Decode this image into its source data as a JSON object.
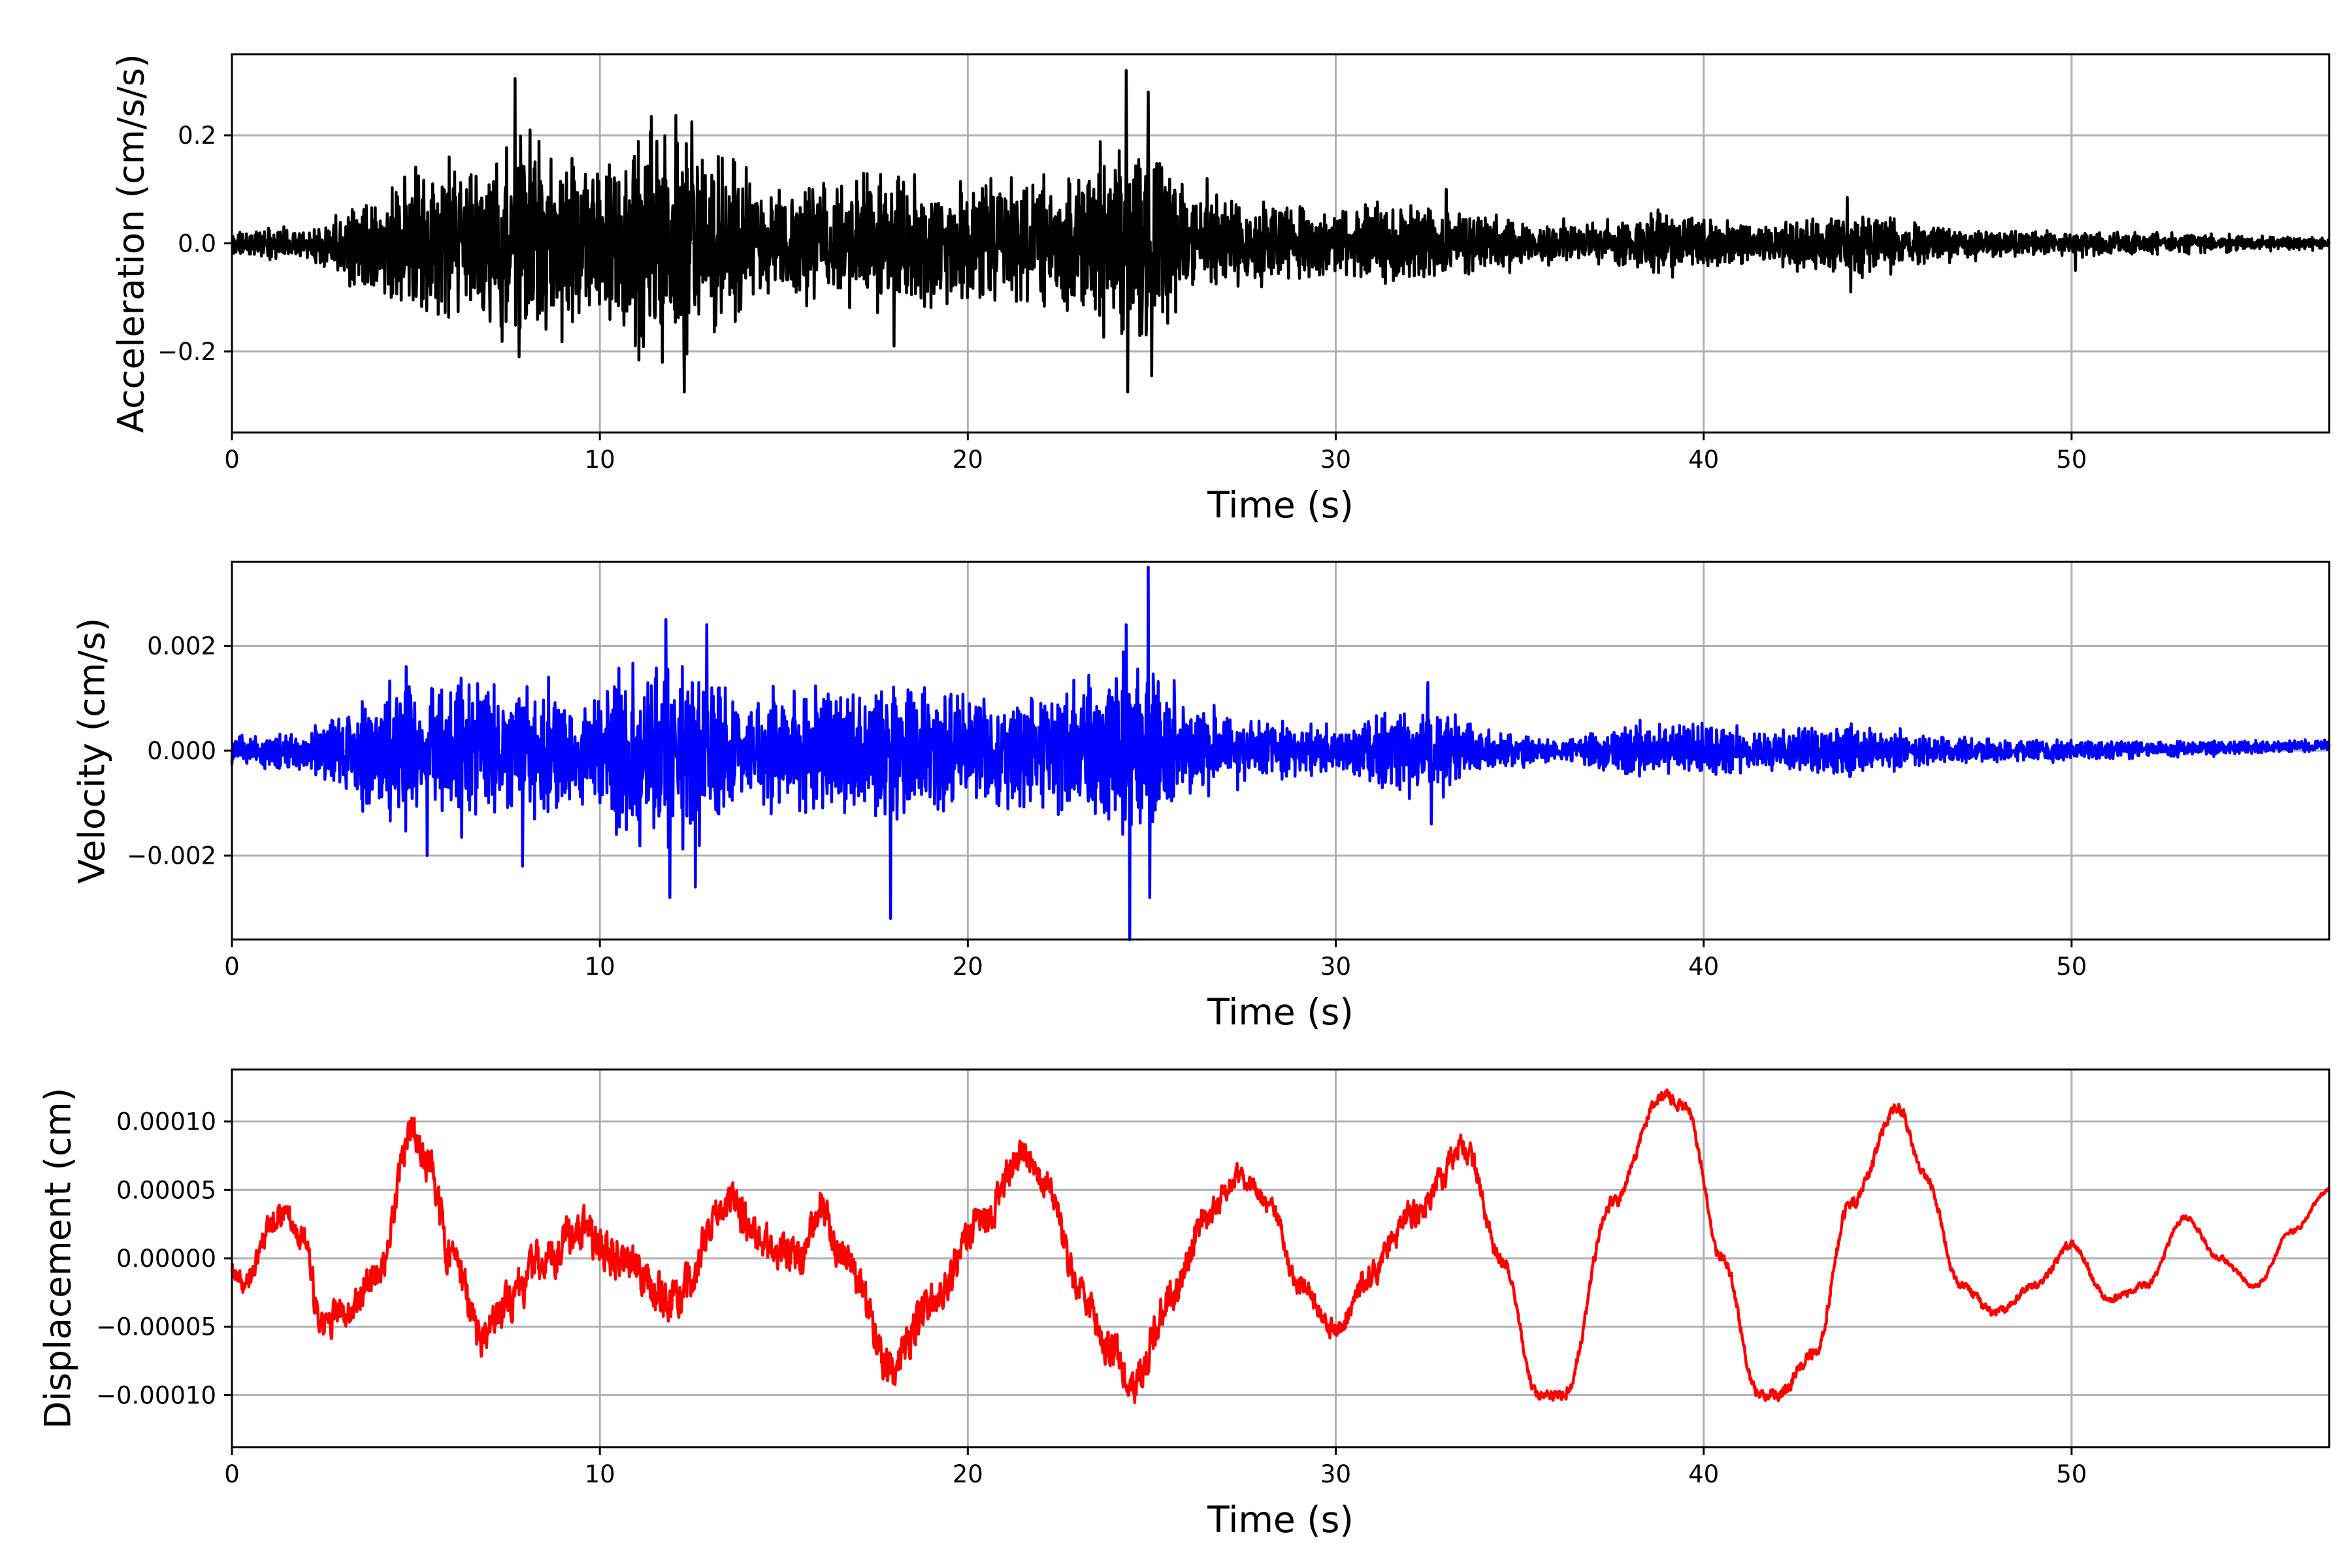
{
  "chart_data": [
    {
      "type": "line",
      "title": "",
      "xlabel": "Time (s)",
      "ylabel": "Acceleration (cm/s/s)",
      "xlim": [
        0,
        57
      ],
      "ylim": [
        -0.35,
        0.35
      ],
      "xticks": [
        0,
        10,
        20,
        30,
        40,
        50
      ],
      "xtick_labels": [
        "0",
        "10",
        "20",
        "30",
        "40",
        "50"
      ],
      "yticks": [
        -0.2,
        0.0,
        0.2
      ],
      "ytick_labels": [
        "−0.2",
        "0.0",
        "0.2"
      ],
      "grid": true,
      "line_color": "#000000",
      "signal": "oscillatory",
      "seed": 11,
      "envelope": [
        [
          0,
          0.025
        ],
        [
          2,
          0.03
        ],
        [
          4,
          0.1
        ],
        [
          5,
          0.14
        ],
        [
          7,
          0.16
        ],
        [
          8,
          0.18
        ],
        [
          10,
          0.15
        ],
        [
          11,
          0.2
        ],
        [
          12,
          0.2
        ],
        [
          13,
          0.16
        ],
        [
          15,
          0.11
        ],
        [
          17,
          0.13
        ],
        [
          18,
          0.14
        ],
        [
          20,
          0.11
        ],
        [
          22,
          0.12
        ],
        [
          23,
          0.12
        ],
        [
          24,
          0.2
        ],
        [
          25,
          0.18
        ],
        [
          26,
          0.09
        ],
        [
          28,
          0.08
        ],
        [
          30,
          0.06
        ],
        [
          32,
          0.08
        ],
        [
          33,
          0.07
        ],
        [
          35,
          0.04
        ],
        [
          37,
          0.04
        ],
        [
          39,
          0.06
        ],
        [
          41,
          0.04
        ],
        [
          43,
          0.05
        ],
        [
          44,
          0.06
        ],
        [
          46,
          0.04
        ],
        [
          48,
          0.025
        ],
        [
          50,
          0.025
        ],
        [
          52,
          0.02
        ],
        [
          55,
          0.015
        ],
        [
          57,
          0.01
        ]
      ],
      "spikes": [
        [
          7.7,
          0.305
        ],
        [
          7.8,
          -0.21
        ],
        [
          8.1,
          0.21
        ],
        [
          11.4,
          0.235
        ],
        [
          12.3,
          -0.275
        ],
        [
          12.5,
          0.225
        ],
        [
          11.7,
          -0.22
        ],
        [
          24.3,
          0.32
        ],
        [
          24.35,
          -0.275
        ],
        [
          24.9,
          0.28
        ],
        [
          25.0,
          -0.245
        ],
        [
          18.0,
          -0.19
        ],
        [
          5.9,
          0.16
        ],
        [
          26.5,
          0.12
        ],
        [
          33.0,
          0.1
        ],
        [
          43.9,
          0.085
        ],
        [
          44.0,
          -0.09
        ],
        [
          50.1,
          -0.05
        ]
      ]
    },
    {
      "type": "line",
      "title": "",
      "xlabel": "Time (s)",
      "ylabel": "Velocity (cm/s)",
      "xlim": [
        0,
        57
      ],
      "ylim": [
        -0.0036,
        0.0036
      ],
      "xticks": [
        0,
        10,
        20,
        30,
        40,
        50
      ],
      "xtick_labels": [
        "0",
        "10",
        "20",
        "30",
        "40",
        "50"
      ],
      "yticks": [
        -0.002,
        0.0,
        0.002
      ],
      "ytick_labels": [
        "−0.002",
        "0.000",
        "0.002"
      ],
      "grid": true,
      "line_color": "#0000ff",
      "signal": "oscillatory",
      "seed": 23,
      "envelope": [
        [
          0,
          0.0003
        ],
        [
          2,
          0.0004
        ],
        [
          3,
          0.0008
        ],
        [
          4.5,
          0.0013
        ],
        [
          6,
          0.0013
        ],
        [
          8,
          0.0012
        ],
        [
          10,
          0.0011
        ],
        [
          11,
          0.0016
        ],
        [
          12,
          0.0018
        ],
        [
          13,
          0.0014
        ],
        [
          14,
          0.0009
        ],
        [
          16,
          0.0012
        ],
        [
          18,
          0.0013
        ],
        [
          20,
          0.0011
        ],
        [
          22,
          0.001
        ],
        [
          24,
          0.0016
        ],
        [
          25,
          0.0015
        ],
        [
          26,
          0.0009
        ],
        [
          28,
          0.0006
        ],
        [
          30,
          0.0004
        ],
        [
          32,
          0.0009
        ],
        [
          33,
          0.0008
        ],
        [
          34,
          0.0004
        ],
        [
          36,
          0.0002
        ],
        [
          38,
          0.0005
        ],
        [
          40,
          0.0005
        ],
        [
          42,
          0.0004
        ],
        [
          44,
          0.0005
        ],
        [
          46,
          0.0003
        ],
        [
          48,
          0.0002
        ],
        [
          50,
          0.0002
        ],
        [
          53,
          0.00015
        ],
        [
          57,
          0.0001
        ]
      ],
      "spikes": [
        [
          11.8,
          0.0025
        ],
        [
          12.9,
          0.0024
        ],
        [
          11.9,
          -0.0028
        ],
        [
          12.6,
          -0.0026
        ],
        [
          17.9,
          -0.0032
        ],
        [
          24.4,
          -0.0036
        ],
        [
          24.9,
          0.0035
        ],
        [
          24.3,
          0.0024
        ],
        [
          24.95,
          -0.0028
        ],
        [
          5.3,
          -0.002
        ],
        [
          7.9,
          -0.0022
        ],
        [
          32.5,
          0.0013
        ],
        [
          32.6,
          -0.0014
        ]
      ],
      "trend": [
        [
          0,
          0
        ],
        [
          50,
          0
        ],
        [
          57,
          0.0001
        ]
      ]
    },
    {
      "type": "line",
      "title": "",
      "xlabel": "Time (s)",
      "ylabel": "Displacement (cm)",
      "xlim": [
        0,
        57
      ],
      "ylim": [
        -0.000138,
        0.000138
      ],
      "xticks": [
        0,
        10,
        20,
        30,
        40,
        50
      ],
      "xtick_labels": [
        "0",
        "10",
        "20",
        "30",
        "40",
        "50"
      ],
      "yticks": [
        -0.0001,
        -5e-05,
        0.0,
        5e-05,
        0.0001
      ],
      "ytick_labels": [
        "−0.00010",
        "−0.00005",
        "0.00000",
        "0.00005",
        "0.00010"
      ],
      "grid": true,
      "line_color": "#ff0000",
      "signal": "smooth",
      "seed": 37,
      "points": [
        [
          0,
          -1e-05
        ],
        [
          0.3,
          -2e-05
        ],
        [
          1.2,
          3e-05
        ],
        [
          1.5,
          3.5e-05
        ],
        [
          2,
          1e-05
        ],
        [
          2.4,
          -5e-05
        ],
        [
          3,
          -4e-05
        ],
        [
          4,
          -1e-05
        ],
        [
          4.9,
          9e-05
        ],
        [
          5.3,
          7e-05
        ],
        [
          6,
          0.0
        ],
        [
          6.8,
          -6e-05
        ],
        [
          7.5,
          -3e-05
        ],
        [
          8.5,
          0.0
        ],
        [
          9.5,
          2e-05
        ],
        [
          10.5,
          0.0
        ],
        [
          12,
          -3e-05
        ],
        [
          13.5,
          4e-05
        ],
        [
          14.5,
          1e-05
        ],
        [
          15.5,
          0.0
        ],
        [
          16,
          4e-05
        ],
        [
          16.6,
          0.0
        ],
        [
          18,
          -8e-05
        ],
        [
          19,
          -3e-05
        ],
        [
          20.5,
          3e-05
        ],
        [
          21.5,
          8e-05
        ],
        [
          22.2,
          5e-05
        ],
        [
          23,
          -2e-05
        ],
        [
          24,
          -7e-05
        ],
        [
          24.5,
          -9e-05
        ],
        [
          25.5,
          -3e-05
        ],
        [
          26.5,
          3e-05
        ],
        [
          27.3,
          6e-05
        ],
        [
          28.2,
          4e-05
        ],
        [
          29,
          -2e-05
        ],
        [
          30,
          -5e-05
        ],
        [
          31,
          -1e-05
        ],
        [
          32,
          3e-05
        ],
        [
          33.5,
          8e-05
        ],
        [
          34.5,
          0.0
        ],
        [
          35.5,
          -0.0001
        ],
        [
          36.2,
          -0.0001
        ],
        [
          37.5,
          4e-05
        ],
        [
          38.9,
          0.00012
        ],
        [
          39.5,
          0.00011
        ],
        [
          40.5,
          0.0
        ],
        [
          41.5,
          -0.0001
        ],
        [
          42,
          -0.0001
        ],
        [
          43,
          -7e-05
        ],
        [
          44,
          4e-05
        ],
        [
          45.3,
          0.00011
        ],
        [
          46,
          6e-05
        ],
        [
          47,
          -2e-05
        ],
        [
          47.9,
          -4e-05
        ],
        [
          49,
          -2e-05
        ],
        [
          50,
          1e-05
        ],
        [
          51,
          -3e-05
        ],
        [
          52,
          -2e-05
        ],
        [
          53.1,
          3e-05
        ],
        [
          54,
          0.0
        ],
        [
          55,
          -2e-05
        ],
        [
          56,
          2e-05
        ],
        [
          57,
          5e-05
        ]
      ],
      "noise": [
        [
          0,
          5e-06
        ],
        [
          2,
          8e-06
        ],
        [
          5,
          1e-05
        ],
        [
          10,
          1.2e-05
        ],
        [
          14,
          1e-05
        ],
        [
          18,
          1.2e-05
        ],
        [
          22,
          8e-06
        ],
        [
          25,
          1e-05
        ],
        [
          28,
          5e-06
        ],
        [
          33,
          8e-06
        ],
        [
          35,
          3e-06
        ],
        [
          40,
          3e-06
        ],
        [
          45,
          3e-06
        ],
        [
          50,
          2e-06
        ],
        [
          57,
          1e-06
        ]
      ]
    }
  ]
}
